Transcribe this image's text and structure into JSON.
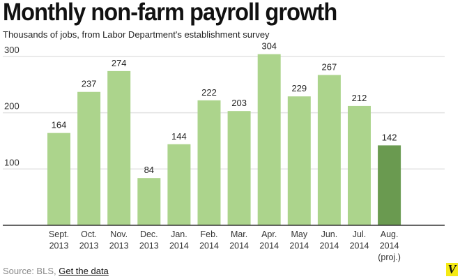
{
  "chart_data": {
    "type": "bar",
    "title": "Monthly non-farm payroll growth",
    "subtitle": "Thousands of jobs, from Labor Department's establishment survey",
    "categories": [
      [
        "Sept.",
        "2013"
      ],
      [
        "Oct.",
        "2013"
      ],
      [
        "Nov.",
        "2013"
      ],
      [
        "Dec.",
        "2013"
      ],
      [
        "Jan.",
        "2014"
      ],
      [
        "Feb.",
        "2014"
      ],
      [
        "Mar.",
        "2014"
      ],
      [
        "Apr.",
        "2014"
      ],
      [
        "May",
        "2014"
      ],
      [
        "Jun.",
        "2014"
      ],
      [
        "Jul.",
        "2014"
      ],
      [
        "Aug.",
        "2014",
        "(proj.)"
      ]
    ],
    "values": [
      164,
      237,
      274,
      84,
      144,
      222,
      203,
      304,
      229,
      267,
      212,
      142
    ],
    "projected": [
      false,
      false,
      false,
      false,
      false,
      false,
      false,
      false,
      false,
      false,
      false,
      true
    ],
    "yticks": [
      100,
      200,
      300
    ],
    "ylim": [
      0,
      310
    ],
    "grid": true,
    "colors": {
      "bar": "#acd48c",
      "projected": "#6a9a50",
      "grid": "#e3e3e3",
      "axis": "#333333"
    }
  },
  "footer": {
    "source": "Source: BLS,",
    "link": "Get the data",
    "logo": "V"
  }
}
